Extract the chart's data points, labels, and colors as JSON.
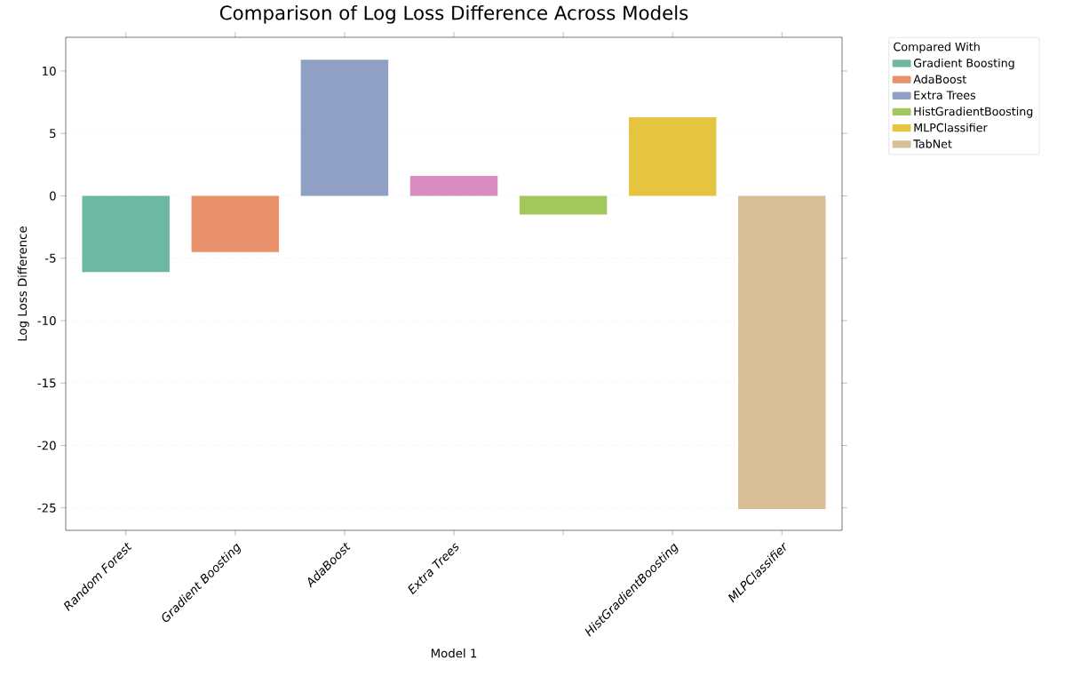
{
  "chart_data": {
    "type": "bar",
    "title": "Comparison of Log Loss Difference Across Models",
    "xlabel": "Model 1",
    "ylabel": "Log Loss Difference",
    "legend_title": "Compared With",
    "categories": [
      "Random Forest",
      "Gradient Boosting",
      "AdaBoost",
      "Extra Trees",
      null,
      "HistGradientBoosting",
      "MLPClassifier"
    ],
    "series": [
      {
        "name": "Gradient Boosting",
        "color": "#6cb8a0",
        "values": [
          -6.1,
          null,
          null,
          null,
          null,
          null,
          null
        ]
      },
      {
        "name": "AdaBoost",
        "color": "#e8916b",
        "values": [
          null,
          -4.5,
          null,
          null,
          null,
          null,
          null
        ]
      },
      {
        "name": "Extra Trees",
        "color": "#8fa0c4",
        "values": [
          null,
          null,
          10.9,
          null,
          null,
          null,
          null
        ]
      },
      {
        "color": "#d98cbf",
        "values": [
          null,
          null,
          null,
          1.6,
          null,
          null,
          null
        ]
      },
      {
        "name": "HistGradientBoosting",
        "color": "#a2c75c",
        "values": [
          null,
          null,
          null,
          null,
          -1.5,
          null,
          null
        ]
      },
      {
        "name": "MLPClassifier",
        "color": "#e5c540",
        "values": [
          null,
          null,
          null,
          null,
          null,
          6.3,
          null
        ]
      },
      {
        "name": "TabNet",
        "color": "#d8bf98",
        "values": [
          null,
          null,
          null,
          null,
          null,
          null,
          -25.1
        ]
      }
    ],
    "ylim": [
      -26.8,
      12.7
    ],
    "yticks": [
      -25,
      -20,
      -15,
      -10,
      -5,
      0,
      5,
      10
    ],
    "grid": "y",
    "legend": "right"
  }
}
